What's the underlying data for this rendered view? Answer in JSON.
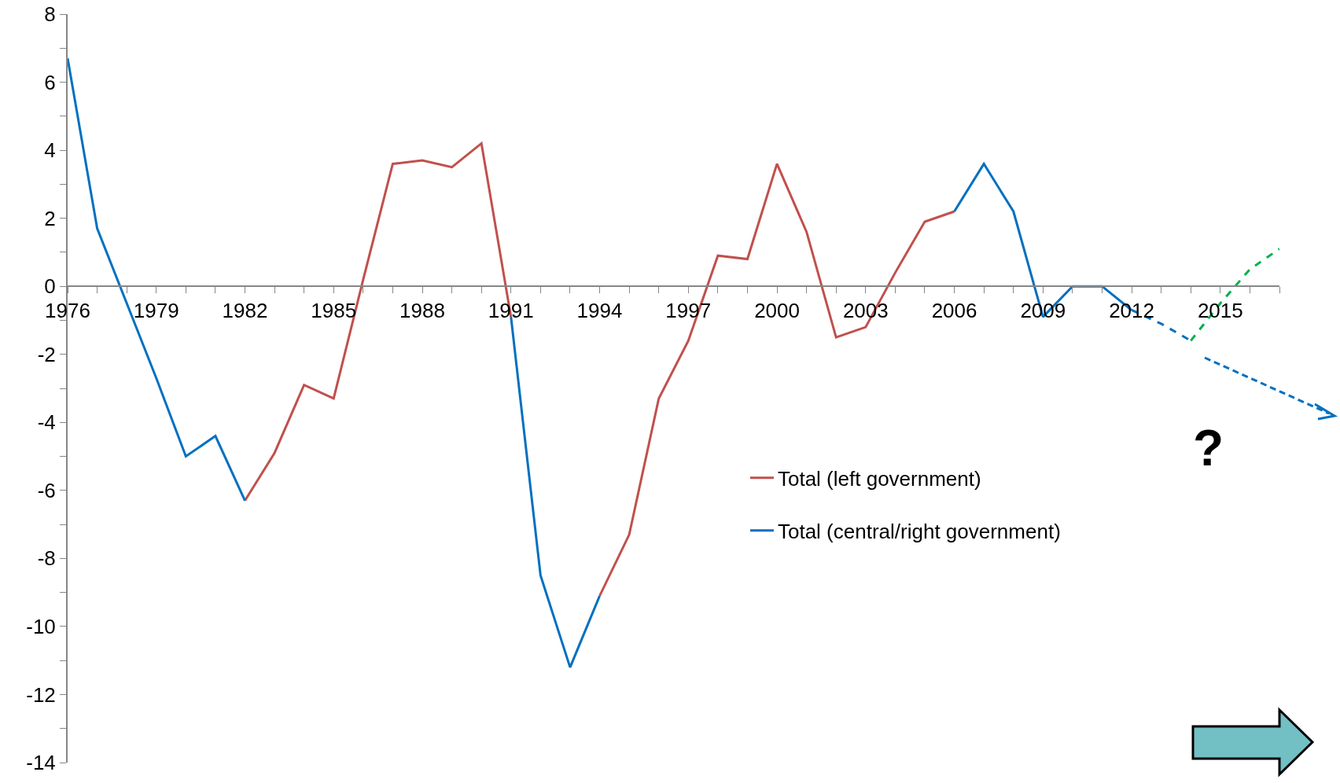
{
  "chart_data": {
    "type": "line",
    "x": [
      1976,
      1977,
      1978,
      1979,
      1980,
      1981,
      1982,
      1983,
      1984,
      1985,
      1986,
      1987,
      1988,
      1989,
      1990,
      1991,
      1992,
      1993,
      1994,
      1995,
      1996,
      1997,
      1998,
      1999,
      2000,
      2001,
      2002,
      2003,
      2004,
      2005,
      2006,
      2007,
      2008,
      2009,
      2010,
      2011,
      2012
    ],
    "series": [
      {
        "name": "Total (left government)",
        "color": "#c0504d",
        "line_style": "solid",
        "values": [
          null,
          null,
          null,
          null,
          null,
          null,
          -6.3,
          -4.9,
          -2.9,
          -3.3,
          0.2,
          3.6,
          3.7,
          3.5,
          4.2,
          -0.9,
          null,
          null,
          -9.1,
          -7.3,
          -3.3,
          -1.6,
          0.9,
          0.8,
          3.6,
          1.6,
          -1.5,
          -1.2,
          0.4,
          1.9,
          2.2,
          null,
          null,
          null,
          null,
          null,
          null
        ]
      },
      {
        "name": "Total (central/right government)",
        "color": "#0070c0",
        "line_style": "solid",
        "values": [
          6.7,
          1.7,
          -0.5,
          -2.7,
          -5.0,
          -4.4,
          -6.3,
          null,
          null,
          null,
          null,
          null,
          null,
          null,
          null,
          -0.9,
          -8.5,
          -11.2,
          -9.1,
          null,
          null,
          null,
          null,
          null,
          null,
          null,
          null,
          null,
          null,
          null,
          2.2,
          3.6,
          2.2,
          -0.9,
          0.0,
          0.0,
          -0.7
        ]
      },
      {
        "color": "#0070c0",
        "line_style": "dashed",
        "x": [
          2012,
          2013,
          2014
        ],
        "values": [
          -0.7,
          -1.1,
          -1.6
        ]
      },
      {
        "color": "#00b050",
        "line_style": "dashed",
        "x": [
          2014,
          2015,
          2016,
          2017
        ],
        "values": [
          -1.6,
          -0.5,
          0.5,
          1.1
        ]
      }
    ],
    "annotations": [
      "?"
    ],
    "xlim": [
      1976,
      2017
    ],
    "xticks": [
      1976,
      {
        "value": 1977,
        "label": null
      },
      {
        "value": 1978,
        "label": null
      },
      1979,
      {
        "value": 1980,
        "label": null
      },
      {
        "value": 1981,
        "label": null
      },
      1982,
      {
        "value": 1983,
        "label": null
      },
      {
        "value": 1984,
        "label": null
      },
      1985,
      {
        "value": 1986,
        "label": null
      },
      {
        "value": 1987,
        "label": null
      },
      1988,
      {
        "value": 1989,
        "label": null
      },
      {
        "value": 1990,
        "label": null
      },
      1991,
      {
        "value": 1992,
        "label": null
      },
      {
        "value": 1993,
        "label": null
      },
      1994,
      {
        "value": 1995,
        "label": null
      },
      {
        "value": 1996,
        "label": null
      },
      1997,
      {
        "value": 1998,
        "label": null
      },
      {
        "value": 1999,
        "label": null
      },
      2000,
      {
        "value": 2001,
        "label": null
      },
      {
        "value": 2002,
        "label": null
      },
      2003,
      {
        "value": 2004,
        "label": null
      },
      {
        "value": 2005,
        "label": null
      },
      2006,
      {
        "value": 2007,
        "label": null
      },
      {
        "value": 2008,
        "label": null
      },
      2009,
      {
        "value": 2010,
        "label": null
      },
      {
        "value": 2011,
        "label": null
      },
      2012,
      {
        "value": 2013,
        "label": null
      },
      {
        "value": 2014,
        "label": null
      },
      2015,
      {
        "value": 2016,
        "label": null
      },
      {
        "value": 2017,
        "label": null
      }
    ],
    "ylim": [
      -14,
      8
    ],
    "yticks": [
      -14,
      {
        "value": -13,
        "label": null
      },
      -12,
      {
        "value": -11,
        "label": null
      },
      -10,
      {
        "value": -9,
        "label": null
      },
      -8,
      {
        "value": -7,
        "label": null
      },
      -6,
      {
        "value": -5,
        "label": null
      },
      -4,
      {
        "value": -3,
        "label": null
      },
      -2,
      {
        "value": -1,
        "label": null
      },
      0,
      {
        "value": 1,
        "label": null
      },
      2,
      {
        "value": 3,
        "label": null
      },
      4,
      {
        "value": 5,
        "label": null
      },
      6,
      {
        "value": 7,
        "label": null
      },
      8
    ],
    "grid": false,
    "legend": "right",
    "marker": "none"
  }
}
